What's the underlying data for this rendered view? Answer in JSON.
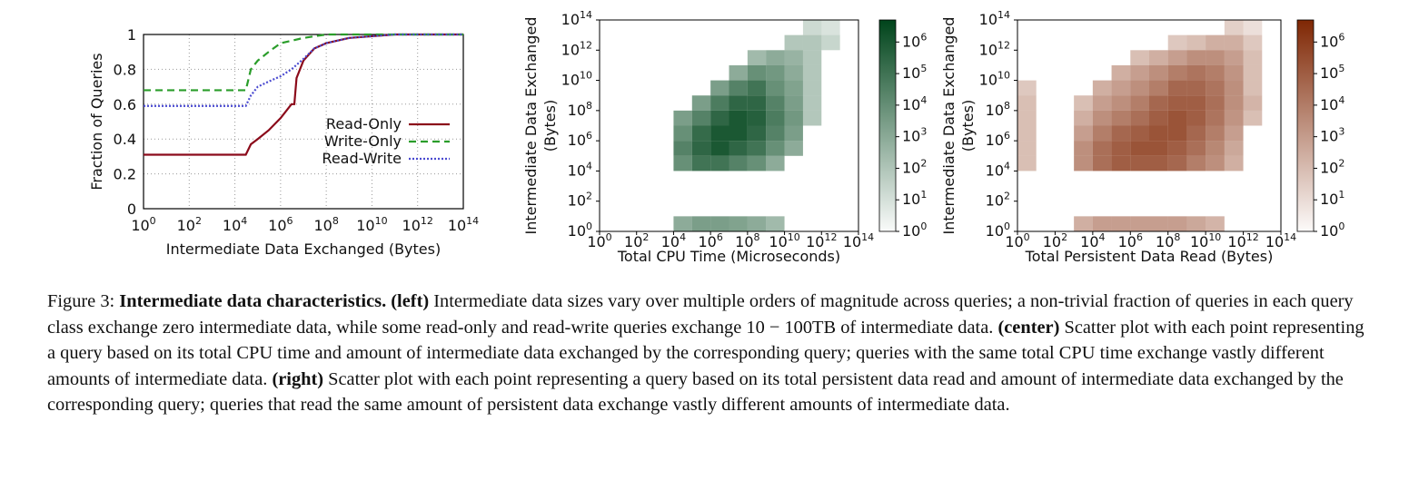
{
  "chart_data": [
    {
      "type": "line",
      "log_x": true,
      "grid": true,
      "legend": "lower right",
      "xlabel": "Intermediate Data Exchanged (Bytes)",
      "ylabel": "Fraction of Queries",
      "xlim": [
        1,
        100000000000000
      ],
      "ylim": [
        0,
        1
      ],
      "xticks": [
        {
          "value": 1,
          "label": "10^0"
        },
        {
          "value": 100,
          "label": "10^2"
        },
        {
          "value": 10000,
          "label": "10^4"
        },
        {
          "value": 1000000,
          "label": "10^6"
        },
        {
          "value": 100000000,
          "label": "10^8"
        },
        {
          "value": 10000000000,
          "label": "10^10"
        },
        {
          "value": 1000000000000,
          "label": "10^12"
        },
        {
          "value": 100000000000000,
          "label": "10^14"
        }
      ],
      "yticks": [
        0,
        0.2,
        0.4,
        0.6,
        0.8,
        1
      ],
      "series": [
        {
          "name": "Read-Only",
          "color": "#8b0a1a",
          "style": "solid",
          "x": [
            1,
            30000,
            50000,
            100000,
            300000,
            1000000,
            3000000,
            4000000,
            5000000,
            10000000,
            30000000,
            100000000,
            1000000000,
            10000000000,
            100000000000,
            100000000000000
          ],
          "values": [
            0.31,
            0.31,
            0.37,
            0.4,
            0.45,
            0.52,
            0.6,
            0.6,
            0.75,
            0.85,
            0.92,
            0.95,
            0.98,
            0.99,
            1,
            1
          ]
        },
        {
          "name": "Write-Only",
          "color": "#2a9d2a",
          "style": "dashed",
          "x": [
            1,
            30000,
            50000,
            100000,
            300000,
            1000000,
            10000000,
            100000000,
            100000000000000
          ],
          "values": [
            0.68,
            0.68,
            0.8,
            0.85,
            0.9,
            0.95,
            0.98,
            1,
            1
          ]
        },
        {
          "name": "Read-Write",
          "color": "#4a4ad0",
          "style": "dotted",
          "x": [
            1,
            30000,
            50000,
            100000,
            300000,
            1000000,
            3000000,
            10000000,
            30000000,
            100000000,
            1000000000,
            10000000000,
            100000000000,
            100000000000000
          ],
          "values": [
            0.59,
            0.59,
            0.65,
            0.7,
            0.73,
            0.76,
            0.8,
            0.86,
            0.92,
            0.95,
            0.98,
            0.99,
            1,
            1
          ]
        }
      ]
    },
    {
      "type": "heatmap",
      "log_x": true,
      "log_y": true,
      "color": "#00441b",
      "xlabel": "Total CPU Time (Microseconds)",
      "ylabel": [
        "Intermediate Data Exchanged",
        "(Bytes)"
      ],
      "xlim": [
        1,
        100000000000000
      ],
      "ylim": [
        1,
        100000000000000
      ],
      "clim": [
        1,
        5000000
      ],
      "xticks": [
        {
          "value": 1,
          "label": "10^0"
        },
        {
          "value": 100,
          "label": "10^2"
        },
        {
          "value": 10000,
          "label": "10^4"
        },
        {
          "value": 1000000,
          "label": "10^6"
        },
        {
          "value": 100000000,
          "label": "10^8"
        },
        {
          "value": 10000000000,
          "label": "10^10"
        },
        {
          "value": 1000000000000,
          "label": "10^12"
        },
        {
          "value": 100000000000000,
          "label": "10^14"
        }
      ],
      "yticks": [
        {
          "value": 1,
          "label": "10^0"
        },
        {
          "value": 100,
          "label": "10^2"
        },
        {
          "value": 10000,
          "label": "10^4"
        },
        {
          "value": 1000000,
          "label": "10^6"
        },
        {
          "value": 100000000,
          "label": "10^8"
        },
        {
          "value": 10000000000,
          "label": "10^10"
        },
        {
          "value": 1000000000000,
          "label": "10^12"
        },
        {
          "value": 100000000000000,
          "label": "10^14"
        }
      ],
      "cticks": [
        {
          "value": 1,
          "label": "10^0"
        },
        {
          "value": 10,
          "label": "10^1"
        },
        {
          "value": 100,
          "label": "10^2"
        },
        {
          "value": 1000,
          "label": "10^3"
        },
        {
          "value": 10000,
          "label": "10^4"
        },
        {
          "value": 100000,
          "label": "10^5"
        },
        {
          "value": 1000000,
          "label": "10^6"
        }
      ],
      "xbins": [
        1,
        10,
        100,
        1000,
        10000,
        100000,
        1000000,
        10000000,
        100000000,
        1000000000,
        10000000000,
        100000000000,
        1000000000000,
        10000000000000,
        100000000000000
      ],
      "ybins": [
        1,
        10,
        100,
        1000,
        10000,
        100000,
        1000000,
        10000000,
        100000000,
        1000000000,
        10000000000,
        100000000000,
        1000000000000,
        10000000000000,
        100000000000000
      ],
      "z": [
        [
          null,
          null,
          null,
          null,
          1000,
          3000,
          3000,
          2000,
          1000,
          300,
          null,
          null,
          null,
          null
        ],
        [
          null,
          null,
          null,
          null,
          null,
          null,
          null,
          null,
          null,
          null,
          null,
          null,
          null,
          null
        ],
        [
          null,
          null,
          null,
          null,
          null,
          null,
          null,
          null,
          null,
          null,
          null,
          null,
          null,
          null
        ],
        [
          null,
          null,
          null,
          null,
          null,
          null,
          null,
          null,
          null,
          null,
          null,
          null,
          null,
          null
        ],
        [
          null,
          null,
          null,
          null,
          10000,
          100000,
          100000,
          30000,
          10000,
          1000,
          null,
          null,
          null,
          null
        ],
        [
          null,
          null,
          null,
          null,
          30000,
          300000,
          1000000,
          300000,
          100000,
          10000,
          1000,
          null,
          null,
          null
        ],
        [
          null,
          null,
          null,
          null,
          10000,
          200000,
          1000000,
          1000000,
          300000,
          30000,
          3000,
          null,
          null,
          null
        ],
        [
          null,
          null,
          null,
          null,
          3000,
          30000,
          300000,
          1000000,
          500000,
          50000,
          5000,
          100,
          null,
          null
        ],
        [
          null,
          null,
          null,
          null,
          null,
          3000,
          50000,
          300000,
          300000,
          30000,
          3000,
          100,
          null,
          null
        ],
        [
          null,
          null,
          null,
          null,
          null,
          null,
          3000,
          30000,
          100000,
          10000,
          2000,
          100,
          null,
          null
        ],
        [
          null,
          null,
          null,
          null,
          null,
          null,
          null,
          1000,
          10000,
          5000,
          1000,
          100,
          null,
          null
        ],
        [
          null,
          null,
          null,
          null,
          null,
          null,
          null,
          null,
          300,
          1000,
          500,
          100,
          null,
          null
        ],
        [
          null,
          null,
          null,
          null,
          null,
          null,
          null,
          null,
          null,
          null,
          100,
          100,
          30,
          null
        ],
        [
          null,
          null,
          null,
          null,
          null,
          null,
          null,
          null,
          null,
          null,
          null,
          20,
          10,
          null
        ]
      ]
    },
    {
      "type": "heatmap",
      "log_x": true,
      "log_y": true,
      "color": "#7f2704",
      "xlabel": "Total Persistent Data Read (Bytes)",
      "ylabel": [
        "Intermediate Data Exchanged",
        "(Bytes)"
      ],
      "xlim": [
        1,
        100000000000000
      ],
      "ylim": [
        1,
        100000000000000
      ],
      "clim": [
        1,
        5000000
      ],
      "xticks": [
        {
          "value": 1,
          "label": "10^0"
        },
        {
          "value": 100,
          "label": "10^2"
        },
        {
          "value": 10000,
          "label": "10^4"
        },
        {
          "value": 1000000,
          "label": "10^6"
        },
        {
          "value": 100000000,
          "label": "10^8"
        },
        {
          "value": 10000000000,
          "label": "10^10"
        },
        {
          "value": 1000000000000,
          "label": "10^12"
        },
        {
          "value": 100000000000000,
          "label": "10^14"
        }
      ],
      "yticks": [
        {
          "value": 1,
          "label": "10^0"
        },
        {
          "value": 100,
          "label": "10^2"
        },
        {
          "value": 10000,
          "label": "10^4"
        },
        {
          "value": 1000000,
          "label": "10^6"
        },
        {
          "value": 100000000,
          "label": "10^8"
        },
        {
          "value": 10000000000,
          "label": "10^10"
        },
        {
          "value": 1000000000000,
          "label": "10^12"
        },
        {
          "value": 100000000000000,
          "label": "10^14"
        }
      ],
      "cticks": [
        {
          "value": 1,
          "label": "10^0"
        },
        {
          "value": 10,
          "label": "10^1"
        },
        {
          "value": 100,
          "label": "10^2"
        },
        {
          "value": 1000,
          "label": "10^3"
        },
        {
          "value": 10000,
          "label": "10^4"
        },
        {
          "value": 100000,
          "label": "10^5"
        },
        {
          "value": 1000000,
          "label": "10^6"
        }
      ],
      "xbins": [
        1,
        10,
        100,
        1000,
        10000,
        100000,
        1000000,
        10000000,
        100000000,
        1000000000,
        10000000000,
        100000000000,
        1000000000000,
        10000000000000,
        100000000000000
      ],
      "ybins": [
        1,
        10,
        100,
        1000,
        10000,
        100000,
        1000000,
        10000000,
        100000000,
        1000000000,
        10000000000,
        100000000000,
        1000000000000,
        10000000000000,
        100000000000000
      ],
      "z": [
        [
          null,
          null,
          null,
          300,
          1000,
          1000,
          1000,
          1000,
          1000,
          500,
          200,
          null,
          null,
          null
        ],
        [
          null,
          null,
          null,
          null,
          null,
          null,
          null,
          null,
          null,
          null,
          null,
          null,
          null,
          null
        ],
        [
          null,
          null,
          null,
          null,
          null,
          null,
          null,
          null,
          null,
          null,
          null,
          null,
          null,
          null
        ],
        [
          null,
          null,
          null,
          null,
          null,
          null,
          null,
          null,
          null,
          null,
          null,
          null,
          null,
          null
        ],
        [
          100,
          null,
          null,
          3000,
          30000,
          100000,
          100000,
          100000,
          50000,
          10000,
          3000,
          300,
          null,
          null
        ],
        [
          100,
          null,
          null,
          3000,
          30000,
          100000,
          200000,
          200000,
          100000,
          30000,
          5000,
          500,
          null,
          null
        ],
        [
          100,
          null,
          null,
          1000,
          10000,
          50000,
          100000,
          200000,
          200000,
          50000,
          10000,
          1000,
          null,
          null
        ],
        [
          100,
          null,
          null,
          300,
          3000,
          10000,
          30000,
          100000,
          200000,
          100000,
          20000,
          2000,
          100,
          null
        ],
        [
          100,
          null,
          null,
          100,
          1000,
          3000,
          10000,
          50000,
          100000,
          100000,
          30000,
          3000,
          200,
          null
        ],
        [
          50,
          null,
          null,
          null,
          300,
          1000,
          3000,
          10000,
          50000,
          50000,
          20000,
          3000,
          100,
          null
        ],
        [
          null,
          null,
          null,
          null,
          null,
          300,
          1000,
          3000,
          10000,
          20000,
          10000,
          2000,
          100,
          null
        ],
        [
          null,
          null,
          null,
          null,
          null,
          null,
          100,
          300,
          1000,
          3000,
          3000,
          1000,
          100,
          null
        ],
        [
          null,
          null,
          null,
          null,
          null,
          null,
          null,
          null,
          50,
          100,
          300,
          300,
          50,
          null
        ],
        [
          null,
          null,
          null,
          null,
          null,
          null,
          null,
          null,
          null,
          null,
          null,
          30,
          10,
          null
        ]
      ]
    }
  ],
  "caption": {
    "parts": [
      {
        "text": "Figure 3: ",
        "bold": false
      },
      {
        "text": "Intermediate data characteristics. (left)",
        "bold": true
      },
      {
        "text": " Intermediate data sizes vary over multiple orders of magnitude across queries; a non-trivial fraction of queries in each query class exchange zero intermediate data, while some read-only and read-write queries exchange 10 − 100TB of intermediate data. ",
        "bold": false
      },
      {
        "text": "(center)",
        "bold": true
      },
      {
        "text": " Scatter plot with each point representing a query based on its total CPU time and amount of intermediate data exchanged by the corresponding query; queries with the same total CPU time exchange vastly different amounts of intermediate data. ",
        "bold": false
      },
      {
        "text": "(right)",
        "bold": true
      },
      {
        "text": " Scatter plot with each point representing a query based on its total persistent data read and amount of intermediate data exchanged by the corresponding query; queries that read the same amount of persistent data exchange vastly different amounts of intermediate data.",
        "bold": false
      }
    ]
  }
}
